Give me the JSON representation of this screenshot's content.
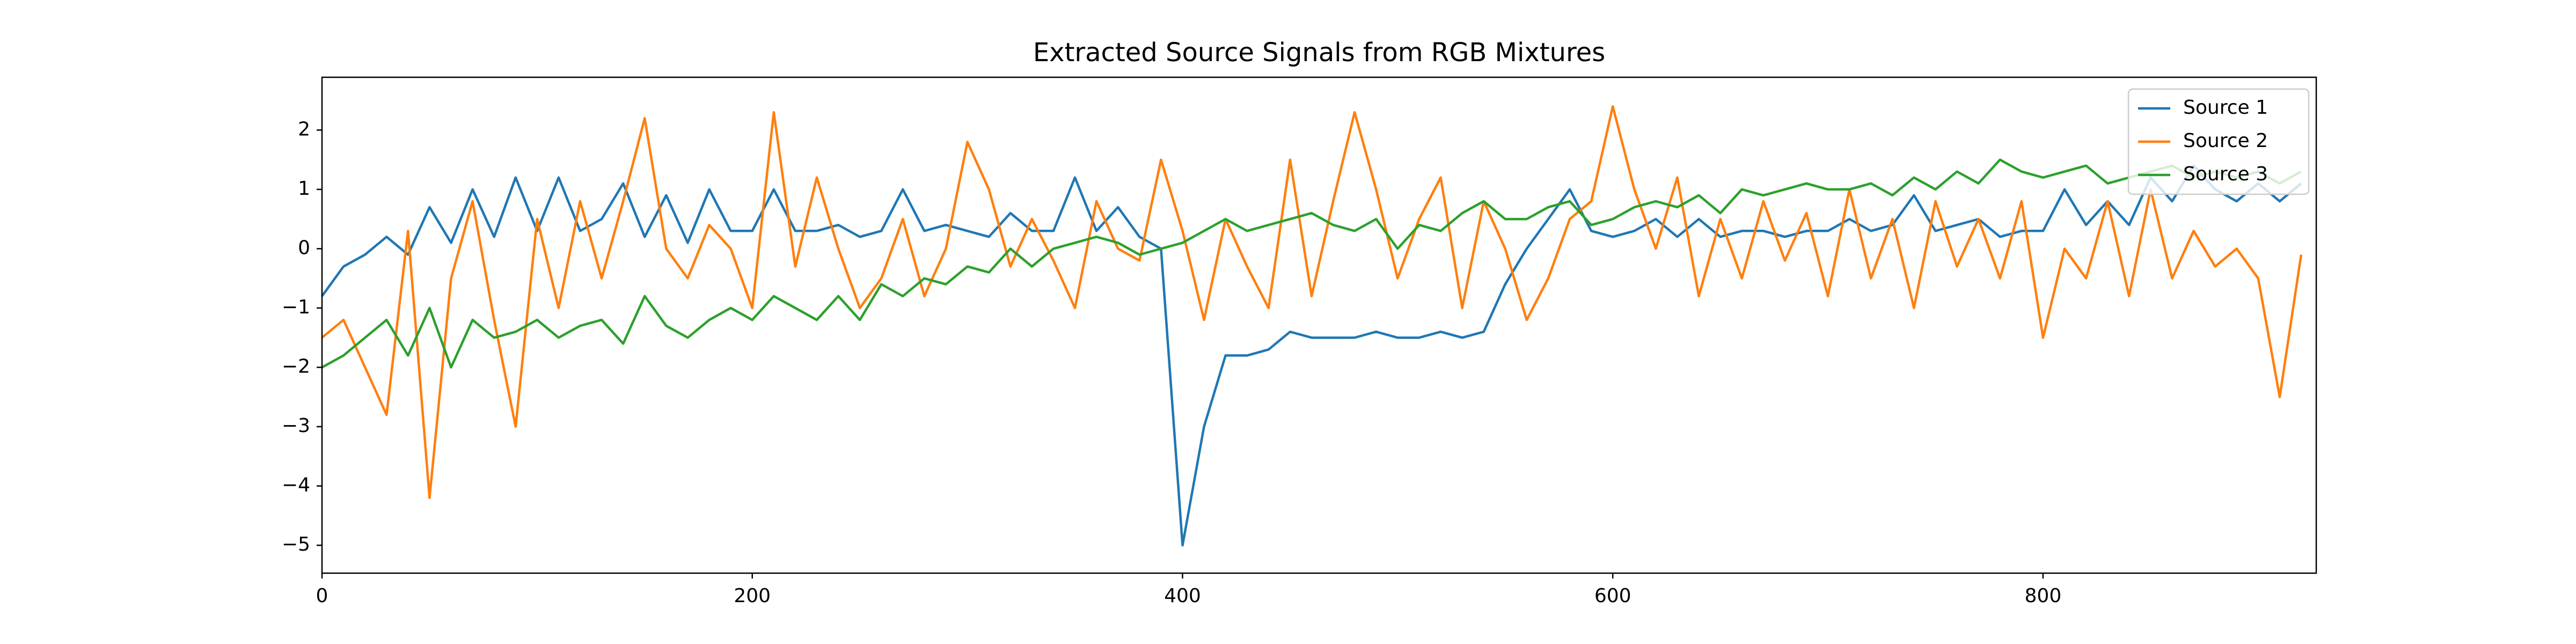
{
  "chart_data": {
    "type": "line",
    "title": "Extracted Source Signals from RGB Mixtures",
    "x": [
      0,
      10,
      20,
      30,
      40,
      50,
      60,
      70,
      80,
      90,
      100,
      110,
      120,
      130,
      140,
      150,
      160,
      170,
      180,
      190,
      200,
      210,
      220,
      230,
      240,
      250,
      260,
      270,
      280,
      290,
      300,
      310,
      320,
      330,
      340,
      350,
      360,
      370,
      380,
      390,
      400,
      410,
      420,
      430,
      440,
      450,
      460,
      470,
      480,
      490,
      500,
      510,
      520,
      530,
      540,
      550,
      560,
      570,
      580,
      590,
      600,
      610,
      620,
      630,
      640,
      650,
      660,
      670,
      680,
      690,
      700,
      710,
      720,
      730,
      740,
      750,
      760,
      770,
      780,
      790,
      800,
      810,
      820,
      830,
      840,
      850,
      860,
      870,
      880,
      890,
      900,
      910,
      920
    ],
    "series": [
      {
        "name": "Source 1",
        "color": "#1f77b4",
        "values": [
          -0.8,
          -0.3,
          -0.1,
          0.2,
          -0.1,
          0.7,
          0.1,
          1.0,
          0.2,
          1.2,
          0.3,
          1.2,
          0.3,
          0.5,
          1.1,
          0.2,
          0.9,
          0.1,
          1.0,
          0.3,
          0.3,
          1.0,
          0.3,
          0.3,
          0.4,
          0.2,
          0.3,
          1.0,
          0.3,
          0.4,
          0.3,
          0.2,
          0.6,
          0.3,
          0.3,
          1.2,
          0.3,
          0.7,
          0.2,
          0.0,
          -5.0,
          -3.0,
          -1.8,
          -1.8,
          -1.7,
          -1.4,
          -1.5,
          -1.5,
          -1.5,
          -1.4,
          -1.5,
          -1.5,
          -1.4,
          -1.5,
          -1.4,
          -0.6,
          0.0,
          0.5,
          1.0,
          0.3,
          0.2,
          0.3,
          0.5,
          0.2,
          0.5,
          0.2,
          0.3,
          0.3,
          0.2,
          0.3,
          0.3,
          0.5,
          0.3,
          0.4,
          0.9,
          0.3,
          0.4,
          0.5,
          0.2,
          0.3,
          0.3,
          1.0,
          0.4,
          0.8,
          0.4,
          1.2,
          0.8,
          1.4,
          1.0,
          0.8,
          1.1,
          0.8,
          1.1
        ]
      },
      {
        "name": "Source 2",
        "color": "#ff7f0e",
        "values": [
          -1.5,
          -1.2,
          -2.0,
          -2.8,
          0.3,
          -4.2,
          -0.5,
          0.8,
          -1.2,
          -3.0,
          0.5,
          -1.0,
          0.8,
          -0.5,
          0.8,
          2.2,
          0.0,
          -0.5,
          0.4,
          0.0,
          -1.0,
          2.3,
          -0.3,
          1.2,
          0.0,
          -1.0,
          -0.5,
          0.5,
          -0.8,
          0.0,
          1.8,
          1.0,
          -0.3,
          0.5,
          -0.2,
          -1.0,
          0.8,
          0.0,
          -0.2,
          1.5,
          0.3,
          -1.2,
          0.5,
          -0.3,
          -1.0,
          1.5,
          -0.8,
          0.8,
          2.3,
          1.0,
          -0.5,
          0.5,
          1.2,
          -1.0,
          0.8,
          0.0,
          -1.2,
          -0.5,
          0.5,
          0.8,
          2.4,
          1.0,
          0.0,
          1.2,
          -0.8,
          0.5,
          -0.5,
          0.8,
          -0.2,
          0.6,
          -0.8,
          1.0,
          -0.5,
          0.5,
          -1.0,
          0.8,
          -0.3,
          0.5,
          -0.5,
          0.8,
          -1.5,
          0.0,
          -0.5,
          0.8,
          -0.8,
          1.0,
          -0.5,
          0.3,
          -0.3,
          0.0,
          -0.5,
          -2.5,
          -0.1
        ]
      },
      {
        "name": "Source 3",
        "color": "#2ca02c",
        "values": [
          -2.0,
          -1.8,
          -1.5,
          -1.2,
          -1.8,
          -1.0,
          -2.0,
          -1.2,
          -1.5,
          -1.4,
          -1.2,
          -1.5,
          -1.3,
          -1.2,
          -1.6,
          -0.8,
          -1.3,
          -1.5,
          -1.2,
          -1.0,
          -1.2,
          -0.8,
          -1.0,
          -1.2,
          -0.8,
          -1.2,
          -0.6,
          -0.8,
          -0.5,
          -0.6,
          -0.3,
          -0.4,
          0.0,
          -0.3,
          0.0,
          0.1,
          0.2,
          0.1,
          -0.1,
          0.0,
          0.1,
          0.3,
          0.5,
          0.3,
          0.4,
          0.5,
          0.6,
          0.4,
          0.3,
          0.5,
          0.0,
          0.4,
          0.3,
          0.6,
          0.8,
          0.5,
          0.5,
          0.7,
          0.8,
          0.4,
          0.5,
          0.7,
          0.8,
          0.7,
          0.9,
          0.6,
          1.0,
          0.9,
          1.0,
          1.1,
          1.0,
          1.0,
          1.1,
          0.9,
          1.2,
          1.0,
          1.3,
          1.1,
          1.5,
          1.3,
          1.2,
          1.3,
          1.4,
          1.1,
          1.2,
          1.3,
          1.4,
          1.2,
          1.3,
          1.2,
          1.3,
          1.1,
          1.3
        ]
      }
    ],
    "xlim": [
      0,
      927
    ],
    "ylim": [
      -5.47,
      2.89
    ],
    "xticks": [
      0,
      200,
      400,
      600,
      800
    ],
    "yticks": [
      {
        "value": -5,
        "label": "−5"
      },
      {
        "value": -4,
        "label": "−4"
      },
      {
        "value": -3,
        "label": "−3"
      },
      {
        "value": -2,
        "label": "−2"
      },
      {
        "value": -1,
        "label": "−1"
      },
      0,
      1,
      2
    ],
    "legend": "upper right"
  }
}
